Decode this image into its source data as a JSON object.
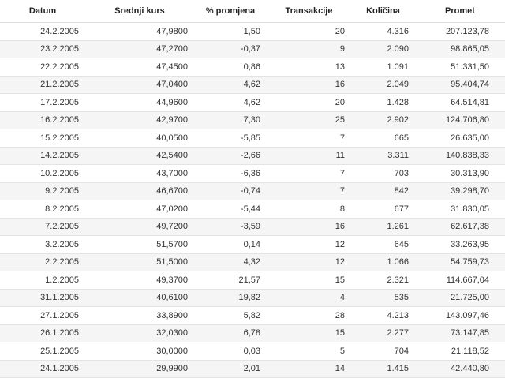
{
  "table": {
    "headers": [
      "Datum",
      "Srednji kurs",
      "% promjena",
      "Transakcije",
      "Količina",
      "Promet"
    ],
    "rows": [
      [
        "24.2.2005",
        "47,9800",
        "1,50",
        "20",
        "4.316",
        "207.123,78"
      ],
      [
        "23.2.2005",
        "47,2700",
        "-0,37",
        "9",
        "2.090",
        "98.865,05"
      ],
      [
        "22.2.2005",
        "47,4500",
        "0,86",
        "13",
        "1.091",
        "51.331,50"
      ],
      [
        "21.2.2005",
        "47,0400",
        "4,62",
        "16",
        "2.049",
        "95.404,74"
      ],
      [
        "17.2.2005",
        "44,9600",
        "4,62",
        "20",
        "1.428",
        "64.514,81"
      ],
      [
        "16.2.2005",
        "42,9700",
        "7,30",
        "25",
        "2.902",
        "124.706,80"
      ],
      [
        "15.2.2005",
        "40,0500",
        "-5,85",
        "7",
        "665",
        "26.635,00"
      ],
      [
        "14.2.2005",
        "42,5400",
        "-2,66",
        "11",
        "3.311",
        "140.838,33"
      ],
      [
        "10.2.2005",
        "43,7000",
        "-6,36",
        "7",
        "703",
        "30.313,90"
      ],
      [
        "9.2.2005",
        "46,6700",
        "-0,74",
        "7",
        "842",
        "39.298,70"
      ],
      [
        "8.2.2005",
        "47,0200",
        "-5,44",
        "8",
        "677",
        "31.830,05"
      ],
      [
        "7.2.2005",
        "49,7200",
        "-3,59",
        "16",
        "1.261",
        "62.617,38"
      ],
      [
        "3.2.2005",
        "51,5700",
        "0,14",
        "12",
        "645",
        "33.263,95"
      ],
      [
        "2.2.2005",
        "51,5000",
        "4,32",
        "12",
        "1.066",
        "54.759,73"
      ],
      [
        "1.2.2005",
        "49,3700",
        "21,57",
        "15",
        "2.321",
        "114.667,04"
      ],
      [
        "31.1.2005",
        "40,6100",
        "19,82",
        "4",
        "535",
        "21.725,00"
      ],
      [
        "27.1.2005",
        "33,8900",
        "5,82",
        "28",
        "4.213",
        "143.097,46"
      ],
      [
        "26.1.2005",
        "32,0300",
        "6,78",
        "15",
        "2.277",
        "73.147,85"
      ],
      [
        "25.1.2005",
        "30,0000",
        "0,03",
        "5",
        "704",
        "21.118,52"
      ],
      [
        "24.1.2005",
        "29,9900",
        "2,01",
        "14",
        "1.415",
        "42.440,80"
      ]
    ]
  }
}
